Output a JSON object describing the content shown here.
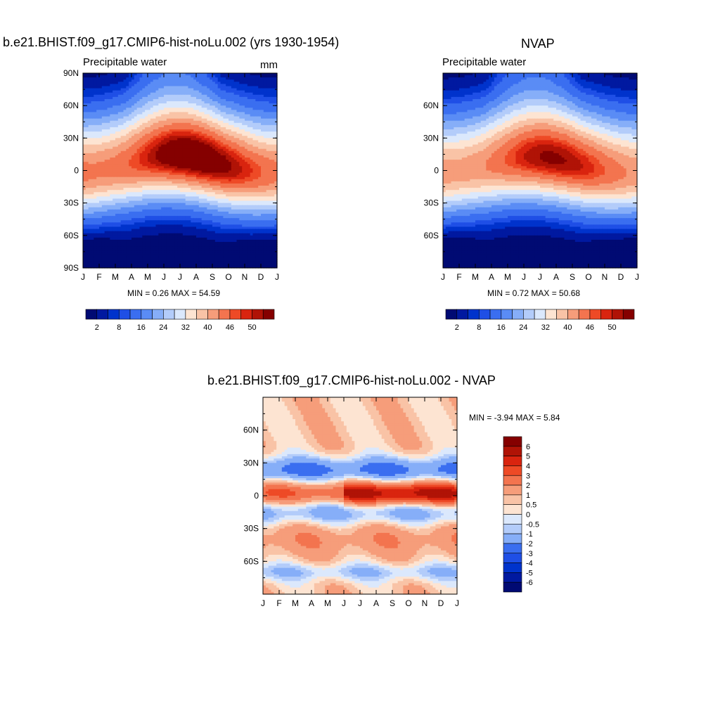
{
  "palette": {
    "levels_count": 17,
    "colors": [
      "#000a73",
      "#0019a0",
      "#0033cc",
      "#1f4fe6",
      "#3a6ef0",
      "#5a8cf5",
      "#86aef8",
      "#b3ccfa",
      "#dbe8fc",
      "#fde4d2",
      "#f9c3a6",
      "#f69d7a",
      "#f3744f",
      "#ee4a26",
      "#d9240f",
      "#b01306",
      "#850000"
    ]
  },
  "chart_data": [
    {
      "type": "heatmap",
      "title": "b.e21.BHIST.f09_g17.CMIP6-hist-noLu.002 (yrs 1930-1954)",
      "left_label": "Precipitable water",
      "right_label": "mm",
      "x_categories": [
        "J",
        "F",
        "M",
        "A",
        "M",
        "J",
        "J",
        "A",
        "S",
        "O",
        "N",
        "D",
        "J"
      ],
      "y_ticks": [
        "90N",
        "60N",
        "30N",
        "0",
        "30S",
        "60S",
        "90S"
      ],
      "ylim": [
        -90,
        90
      ],
      "stats_text": "MIN =   0.26 MAX =  54.59",
      "min": 0.26,
      "max": 54.59,
      "colorbar": {
        "orientation": "horizontal",
        "labels": [
          "2",
          "8",
          "16",
          "24",
          "32",
          "40",
          "46",
          "50"
        ]
      },
      "field": {
        "equator_center_lat": 5,
        "equator_seasonal_amp": 8,
        "peak_month": 7,
        "peak_value": 54,
        "polar_min": 1
      }
    },
    {
      "type": "heatmap",
      "title": "NVAP",
      "left_label": "Precipitable water",
      "x_categories": [
        "J",
        "F",
        "M",
        "A",
        "M",
        "J",
        "J",
        "A",
        "S",
        "O",
        "N",
        "D",
        "J"
      ],
      "y_ticks": [
        "60N",
        "30N",
        "0",
        "30S",
        "60S"
      ],
      "ylim": [
        -90,
        90
      ],
      "stats_text": "MIN =   0.72 MAX =  50.68",
      "min": 0.72,
      "max": 50.68,
      "colorbar": {
        "orientation": "horizontal",
        "labels": [
          "2",
          "8",
          "16",
          "24",
          "32",
          "40",
          "46",
          "50"
        ]
      },
      "field": {
        "equator_center_lat": 4,
        "equator_seasonal_amp": 7,
        "peak_month": 7,
        "peak_value": 50,
        "polar_min": 1.5
      }
    },
    {
      "type": "heatmap",
      "title": "b.e21.BHIST.f09_g17.CMIP6-hist-noLu.002 - NVAP",
      "x_categories": [
        "J",
        "F",
        "M",
        "A",
        "M",
        "J",
        "J",
        "A",
        "S",
        "O",
        "N",
        "D",
        "J"
      ],
      "y_ticks": [
        "60N",
        "30N",
        "0",
        "30S",
        "60S"
      ],
      "ylim": [
        -90,
        90
      ],
      "stats_text": "MIN =  -3.94 MAX =   5.84",
      "min": -3.94,
      "max": 5.84,
      "colorbar": {
        "orientation": "vertical",
        "labels": [
          "6",
          "5",
          "4",
          "3",
          "2",
          "1",
          "0.5",
          "0",
          "-0.5",
          "-1",
          "-2",
          "-3",
          "-4",
          "-5",
          "-6"
        ]
      },
      "levels": [
        -6,
        -5,
        -4,
        -3,
        -2,
        -1,
        -0.5,
        0,
        0.5,
        1,
        2,
        3,
        4,
        5,
        6
      ]
    }
  ]
}
